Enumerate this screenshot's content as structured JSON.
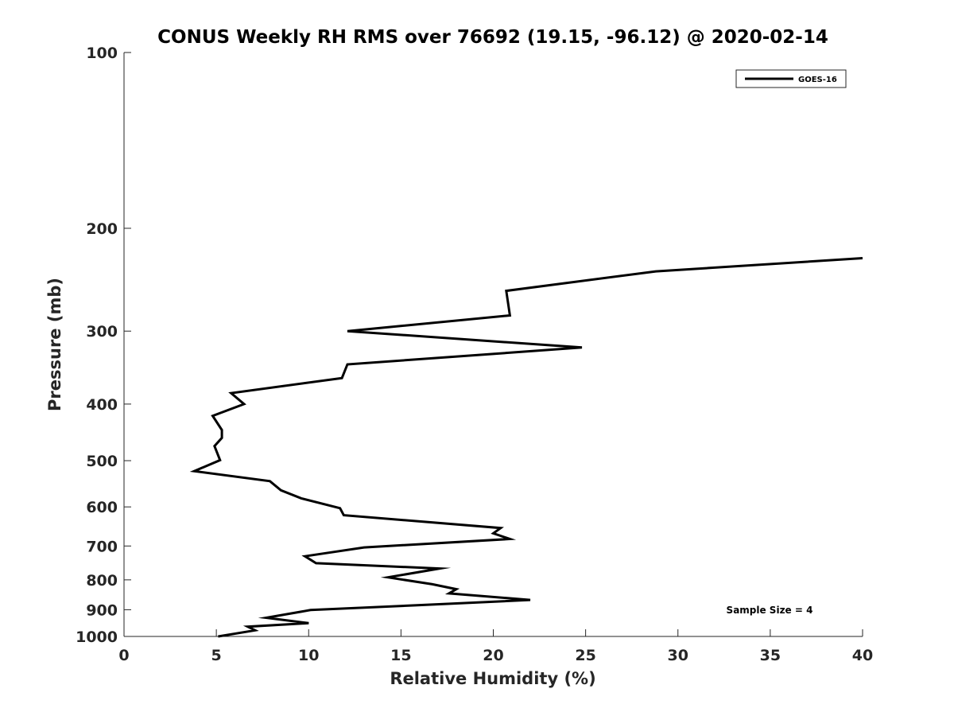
{
  "chart_data": {
    "type": "line",
    "title": "CONUS Weekly RH RMS over 76692 (19.15, -96.12) @ 2020-02-14",
    "xlabel": "Relative Humidity (%)",
    "ylabel": "Pressure (mb)",
    "xlim": [
      0,
      40
    ],
    "ylim": [
      100,
      1000
    ],
    "y_scale": "log",
    "y_reversed": true,
    "grid": false,
    "legend_position": "top-right",
    "x_ticks": [
      0,
      5,
      10,
      15,
      20,
      25,
      30,
      35,
      40
    ],
    "x_tick_labels": [
      "0",
      "5",
      "10",
      "15",
      "20",
      "25",
      "30",
      "35",
      "40"
    ],
    "y_ticks": [
      100,
      200,
      300,
      400,
      500,
      600,
      700,
      800,
      900,
      1000
    ],
    "y_tick_labels": [
      "100",
      "200",
      "300",
      "400",
      "500",
      "600",
      "700",
      "800",
      "900",
      "1000"
    ],
    "annotation": "Sample Size = 4",
    "series": [
      {
        "name": "GOES-16",
        "color": "#000000",
        "points": [
          {
            "x": 40.0,
            "y": 225
          },
          {
            "x": 28.8,
            "y": 237
          },
          {
            "x": 20.7,
            "y": 256
          },
          {
            "x": 20.9,
            "y": 282
          },
          {
            "x": 12.1,
            "y": 300
          },
          {
            "x": 24.8,
            "y": 320
          },
          {
            "x": 12.1,
            "y": 342
          },
          {
            "x": 11.8,
            "y": 361
          },
          {
            "x": 5.8,
            "y": 383
          },
          {
            "x": 6.5,
            "y": 400
          },
          {
            "x": 4.8,
            "y": 419
          },
          {
            "x": 5.3,
            "y": 443
          },
          {
            "x": 5.3,
            "y": 457
          },
          {
            "x": 4.9,
            "y": 472
          },
          {
            "x": 5.2,
            "y": 499
          },
          {
            "x": 3.8,
            "y": 521
          },
          {
            "x": 7.9,
            "y": 542
          },
          {
            "x": 8.5,
            "y": 562
          },
          {
            "x": 9.6,
            "y": 580
          },
          {
            "x": 11.7,
            "y": 603
          },
          {
            "x": 11.9,
            "y": 620
          },
          {
            "x": 20.4,
            "y": 652
          },
          {
            "x": 20.0,
            "y": 666
          },
          {
            "x": 20.9,
            "y": 681
          },
          {
            "x": 13.0,
            "y": 704
          },
          {
            "x": 9.8,
            "y": 729
          },
          {
            "x": 10.4,
            "y": 749
          },
          {
            "x": 17.1,
            "y": 765
          },
          {
            "x": 14.3,
            "y": 792
          },
          {
            "x": 16.7,
            "y": 814
          },
          {
            "x": 18.0,
            "y": 830
          },
          {
            "x": 17.6,
            "y": 844
          },
          {
            "x": 22.0,
            "y": 866
          },
          {
            "x": 17.3,
            "y": 880
          },
          {
            "x": 10.1,
            "y": 901
          },
          {
            "x": 7.7,
            "y": 929
          },
          {
            "x": 10.0,
            "y": 949
          },
          {
            "x": 6.7,
            "y": 962
          },
          {
            "x": 7.1,
            "y": 976
          },
          {
            "x": 5.1,
            "y": 1000
          }
        ]
      }
    ]
  }
}
